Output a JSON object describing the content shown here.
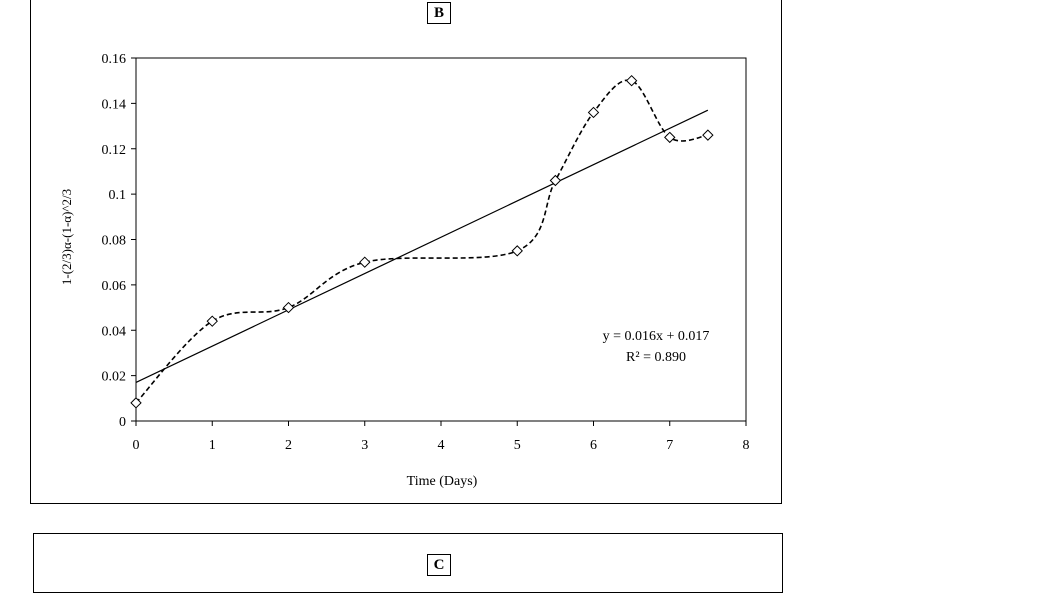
{
  "panels": {
    "b_label": "B",
    "c_label": "C"
  },
  "colors": {
    "line": "#000000",
    "background": "#ffffff"
  },
  "chart_data": {
    "type": "scatter",
    "xlabel": "Time (Days)",
    "ylabel": "1-(2/3)α-(1-α)^2/3",
    "xlim": [
      0,
      8
    ],
    "ylim": [
      0,
      0.16
    ],
    "x_ticks": [
      "0",
      "1",
      "2",
      "3",
      "4",
      "5",
      "6",
      "7",
      "8"
    ],
    "y_ticks": [
      "0",
      "0.02",
      "0.04",
      "0.06",
      "0.08",
      "0.1",
      "0.12",
      "0.14",
      "0.16"
    ],
    "grid": false,
    "series": [
      {
        "marker": "diamond",
        "line_style": "dashed smooth",
        "x": [
          0,
          1,
          2,
          3,
          5,
          5.5,
          6,
          6.5,
          7,
          7.5
        ],
        "y": [
          0.008,
          0.044,
          0.05,
          0.07,
          0.075,
          0.106,
          0.136,
          0.15,
          0.125,
          0.126
        ]
      }
    ],
    "trendline": {
      "slope": 0.016,
      "intercept": 0.017,
      "x_range": [
        0,
        7.5
      ],
      "equation_text": "y = 0.016x + 0.017",
      "r2_text": "R² = 0.890"
    }
  }
}
